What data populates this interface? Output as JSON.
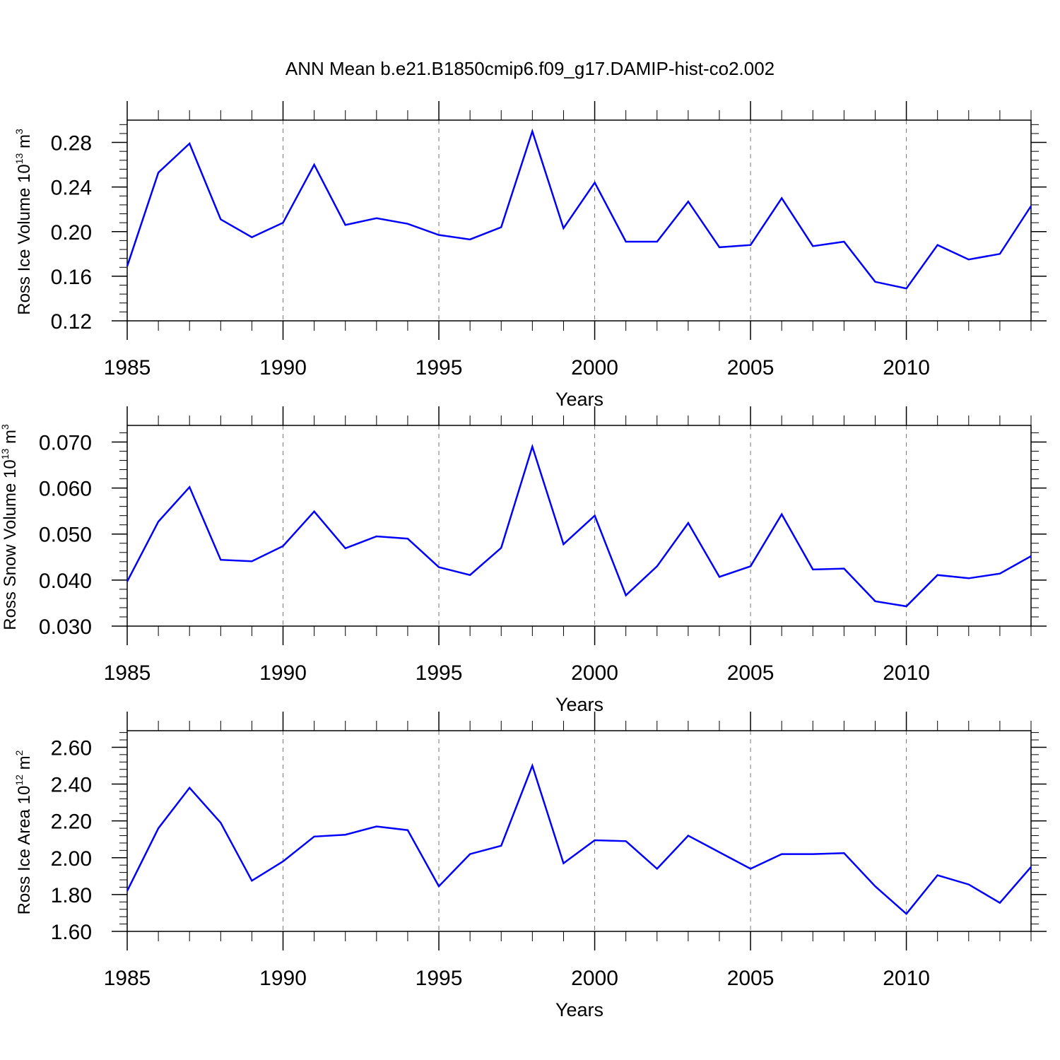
{
  "figure": {
    "title": "ANN Mean b.e21.B1850cmip6.f09_g17.DAMIP-hist-co2.002",
    "line_color": "#0000ff"
  },
  "chart_data": [
    {
      "type": "line",
      "ylabel": "Ross Ice Volume 10",
      "ylabel_exp": "13",
      "ylabel_unit": " m",
      "ylabel_unit_exp": "3",
      "xlabel": "Years",
      "xlim": [
        1985,
        2014
      ],
      "ylim": [
        0.12,
        0.3
      ],
      "x_ticks": [
        1985,
        1990,
        1995,
        2000,
        2005,
        2010
      ],
      "x_tick_labels": [
        "1985",
        "1990",
        "1995",
        "2000",
        "2005",
        "2010"
      ],
      "y_ticks": [
        0.12,
        0.16,
        0.2,
        0.24,
        0.28
      ],
      "y_tick_labels": [
        "0.12",
        "0.16",
        "0.20",
        "0.24",
        "0.28"
      ],
      "y_minor_step": 0.008,
      "grid": "dashed vertical at major x ticks",
      "series": [
        {
          "x": [
            1985,
            1986,
            1987,
            1988,
            1989,
            1990,
            1991,
            1992,
            1993,
            1994,
            1995,
            1996,
            1997,
            1998,
            1999,
            2000,
            2001,
            2002,
            2003,
            2004,
            2005,
            2006,
            2007,
            2008,
            2009,
            2010,
            2011,
            2012,
            2013,
            2014
          ],
          "values": [
            0.169,
            0.253,
            0.279,
            0.211,
            0.195,
            0.208,
            0.26,
            0.206,
            0.212,
            0.207,
            0.197,
            0.193,
            0.204,
            0.29,
            0.203,
            0.244,
            0.191,
            0.191,
            0.227,
            0.186,
            0.188,
            0.23,
            0.187,
            0.191,
            0.155,
            0.149,
            0.188,
            0.175,
            0.18,
            0.223
          ]
        }
      ]
    },
    {
      "type": "line",
      "ylabel": "Ross Snow Volume 10",
      "ylabel_exp": "13",
      "ylabel_unit": " m",
      "ylabel_unit_exp": "3",
      "xlabel": "Years",
      "xlim": [
        1985,
        2014
      ],
      "ylim": [
        0.03,
        0.0736
      ],
      "x_ticks": [
        1985,
        1990,
        1995,
        2000,
        2005,
        2010
      ],
      "x_tick_labels": [
        "1985",
        "1990",
        "1995",
        "2000",
        "2005",
        "2010"
      ],
      "y_ticks": [
        0.03,
        0.04,
        0.05,
        0.06,
        0.07
      ],
      "y_tick_labels": [
        "0.030",
        "0.040",
        "0.050",
        "0.060",
        "0.070"
      ],
      "y_minor_step": 0.002,
      "grid": "dashed vertical at major x ticks",
      "series": [
        {
          "x": [
            1985,
            1986,
            1987,
            1988,
            1989,
            1990,
            1991,
            1992,
            1993,
            1994,
            1995,
            1996,
            1997,
            1998,
            1999,
            2000,
            2001,
            2002,
            2003,
            2004,
            2005,
            2006,
            2007,
            2008,
            2009,
            2010,
            2011,
            2012,
            2013,
            2014
          ],
          "values": [
            0.0397,
            0.0527,
            0.0602,
            0.0444,
            0.0441,
            0.0474,
            0.0549,
            0.0469,
            0.0495,
            0.049,
            0.0428,
            0.0411,
            0.047,
            0.069,
            0.0478,
            0.054,
            0.0367,
            0.043,
            0.0524,
            0.0407,
            0.043,
            0.0543,
            0.0423,
            0.0425,
            0.0354,
            0.0343,
            0.0411,
            0.0404,
            0.0414,
            0.0452
          ]
        }
      ]
    },
    {
      "type": "line",
      "ylabel": "Ross Ice Area 10",
      "ylabel_exp": "12",
      "ylabel_unit": " m",
      "ylabel_unit_exp": "2",
      "xlabel": "Years",
      "xlim": [
        1985,
        2014
      ],
      "ylim": [
        1.6,
        2.69
      ],
      "x_ticks": [
        1985,
        1990,
        1995,
        2000,
        2005,
        2010
      ],
      "x_tick_labels": [
        "1985",
        "1990",
        "1995",
        "2000",
        "2005",
        "2010"
      ],
      "y_ticks": [
        1.6,
        1.8,
        2.0,
        2.2,
        2.4,
        2.6
      ],
      "y_tick_labels": [
        "1.60",
        "1.80",
        "2.00",
        "2.20",
        "2.40",
        "2.60"
      ],
      "y_minor_step": 0.04,
      "grid": "dashed vertical at major x ticks",
      "series": [
        {
          "x": [
            1985,
            1986,
            1987,
            1988,
            1989,
            1990,
            1991,
            1992,
            1993,
            1994,
            1995,
            1996,
            1997,
            1998,
            1999,
            2000,
            2001,
            2002,
            2003,
            2004,
            2005,
            2006,
            2007,
            2008,
            2009,
            2010,
            2011,
            2012,
            2013,
            2014
          ],
          "values": [
            1.82,
            2.16,
            2.38,
            2.19,
            1.875,
            1.98,
            2.115,
            2.125,
            2.17,
            2.15,
            1.845,
            2.02,
            2.065,
            2.5,
            1.97,
            2.095,
            2.09,
            1.94,
            2.12,
            2.03,
            1.94,
            2.02,
            2.02,
            2.025,
            1.845,
            1.695,
            1.905,
            1.855,
            1.755,
            1.95
          ]
        }
      ]
    }
  ]
}
